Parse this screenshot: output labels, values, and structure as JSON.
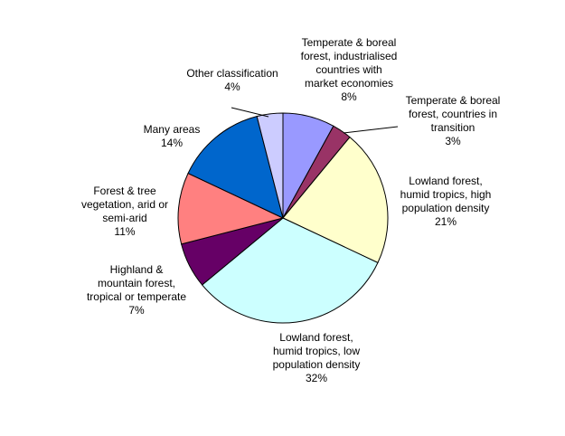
{
  "chart_data": {
    "type": "pie",
    "title": "",
    "start": "top",
    "direction": "clockwise",
    "slices": [
      {
        "label": [
          "Temperate & boreal",
          "forest, industrialised",
          "countries with",
          "market economies"
        ],
        "value": 8,
        "value_label": "8%",
        "color": "#9999ff"
      },
      {
        "label": [
          "Temperate & boreal",
          "forest, countries in",
          "transition"
        ],
        "value": 3,
        "value_label": "3%",
        "color": "#993366"
      },
      {
        "label": [
          "Lowland forest,",
          "humid tropics, high",
          "population density"
        ],
        "value": 21,
        "value_label": "21%",
        "color": "#ffffcc"
      },
      {
        "label": [
          "Lowland forest,",
          "humid tropics, low",
          "population density"
        ],
        "value": 32,
        "value_label": "32%",
        "color": "#ccffff"
      },
      {
        "label": [
          "Highland &",
          "mountain forest,",
          "tropical or temperate"
        ],
        "value": 7,
        "value_label": "7%",
        "color": "#660066"
      },
      {
        "label": [
          "Forest & tree",
          "vegetation, arid or",
          "semi-arid"
        ],
        "value": 11,
        "value_label": "11%",
        "color": "#ff8080"
      },
      {
        "label": [
          "Many areas"
        ],
        "value": 14,
        "value_label": "14%",
        "color": "#0066cc"
      },
      {
        "label": [
          "Other classification"
        ],
        "value": 4,
        "value_label": "4%",
        "color": "#ccccff"
      }
    ]
  }
}
